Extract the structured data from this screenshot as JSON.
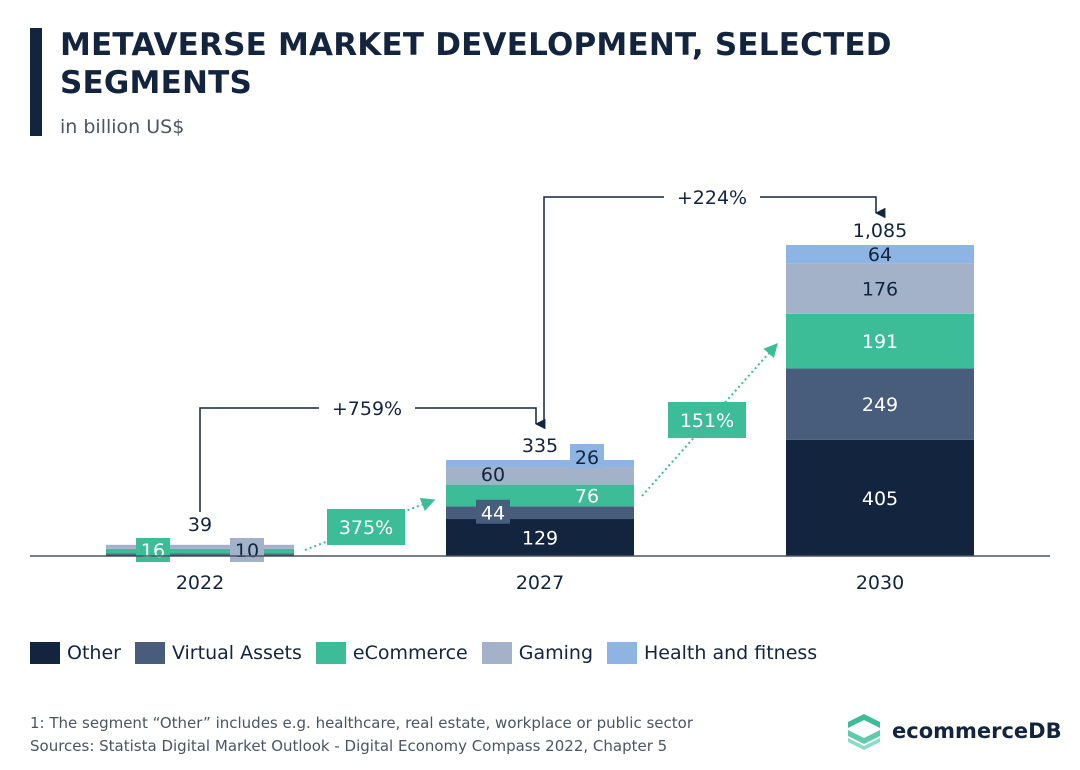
{
  "header": {
    "title": "METAVERSE MARKET DEVELOPMENT, SELECTED SEGMENTS",
    "subtitle": "in billion US$"
  },
  "chart_data": {
    "type": "bar",
    "stacked": true,
    "title": "METAVERSE MARKET DEVELOPMENT, SELECTED SEGMENTS",
    "ylabel": "in billion US$",
    "xlabel": "",
    "categories": [
      "2022",
      "2027",
      "2030"
    ],
    "totals": [
      39,
      335,
      1085
    ],
    "total_labels": [
      "39",
      "335",
      "1,085"
    ],
    "series": [
      {
        "name": "Other",
        "color": "#13253e",
        "values": [
          4,
          129,
          405
        ],
        "labels": [
          "",
          "129",
          "405"
        ],
        "label_color": "#ffffff"
      },
      {
        "name": "Virtual Assets",
        "color": "#485d7c",
        "values": [
          5,
          44,
          249
        ],
        "labels": [
          "",
          "44",
          "249"
        ],
        "label_color": "#ffffff"
      },
      {
        "name": "eCommerce",
        "color": "#3dbd97",
        "values": [
          16,
          76,
          191
        ],
        "labels": [
          "16",
          "76",
          "191"
        ],
        "label_color": "#ffffff"
      },
      {
        "name": "Gaming",
        "color": "#a3b1c9",
        "values": [
          10,
          60,
          176
        ],
        "labels": [
          "10",
          "60",
          "176"
        ],
        "label_color": "#13253e"
      },
      {
        "name": "Health and fitness",
        "color": "#8db4e2",
        "values": [
          4,
          26,
          64
        ],
        "labels": [
          "",
          "26",
          "64"
        ],
        "label_color": "#13253e"
      }
    ],
    "annotations": {
      "total_growth": [
        {
          "from": "2022",
          "to": "2027",
          "label": "+759%"
        },
        {
          "from": "2027",
          "to": "2030",
          "label": "+224%"
        }
      ],
      "ecommerce_growth": [
        {
          "from": "2022",
          "to": "2027",
          "label": "375%"
        },
        {
          "from": "2027",
          "to": "2030",
          "label": "151%"
        }
      ]
    },
    "ylim": [
      0,
      1085
    ],
    "grid": false,
    "legend": "bottom-left"
  },
  "legend": [
    {
      "label": "Other",
      "color": "#13253e"
    },
    {
      "label": "Virtual Assets",
      "color": "#485d7c"
    },
    {
      "label": "eCommerce",
      "color": "#3dbd97"
    },
    {
      "label": "Gaming",
      "color": "#a3b1c9"
    },
    {
      "label": "Health and fitness",
      "color": "#8db4e2"
    }
  ],
  "footer": {
    "footnote": "1: The segment “Other” includes e.g. healthcare, real estate, workplace or public sector",
    "sources": "Sources: Statista Digital Market Outlook - Digital Economy Compass 2022, Chapter 5",
    "brand": "ecommerceDB"
  },
  "colors": {
    "dark": "#13253e",
    "accent_green": "#3dbd97"
  }
}
